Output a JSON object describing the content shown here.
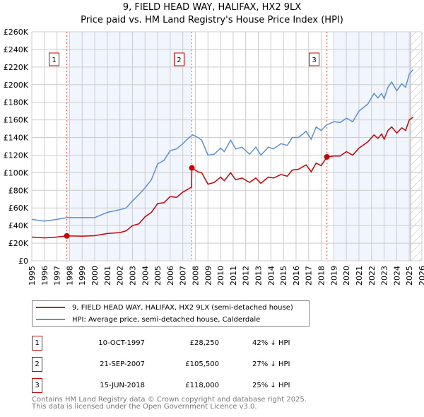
{
  "chart_data": {
    "type": "line",
    "title": "9, FIELD HEAD WAY, HALIFAX, HX2 9LX",
    "subtitle": "Price paid vs. HM Land Registry's House Price Index (HPI)",
    "xlim": [
      1995,
      2026
    ],
    "ylim": [
      0,
      260000
    ],
    "x_ticks": [
      "1995",
      "1996",
      "1997",
      "1998",
      "1999",
      "2000",
      "2001",
      "2002",
      "2003",
      "2004",
      "2005",
      "2006",
      "2007",
      "2008",
      "2009",
      "2010",
      "2011",
      "2012",
      "2013",
      "2014",
      "2015",
      "2016",
      "2017",
      "2018",
      "2019",
      "2020",
      "2021",
      "2022",
      "2023",
      "2024",
      "2025",
      "2026"
    ],
    "y_ticks": [
      {
        "v": 0,
        "label": "£0"
      },
      {
        "v": 20000,
        "label": "£20K"
      },
      {
        "v": 40000,
        "label": "£40K"
      },
      {
        "v": 60000,
        "label": "£60K"
      },
      {
        "v": 80000,
        "label": "£80K"
      },
      {
        "v": 100000,
        "label": "£100K"
      },
      {
        "v": 120000,
        "label": "£120K"
      },
      {
        "v": 140000,
        "label": "£140K"
      },
      {
        "v": 160000,
        "label": "£160K"
      },
      {
        "v": 180000,
        "label": "£180K"
      },
      {
        "v": 200000,
        "label": "£200K"
      },
      {
        "v": 220000,
        "label": "£220K"
      },
      {
        "v": 240000,
        "label": "£240K"
      },
      {
        "v": 260000,
        "label": "£260K"
      }
    ],
    "grid": true,
    "shaded_ranges": [
      [
        1998,
        2007.72
      ],
      [
        2019,
        2025.0
      ]
    ],
    "forecast_hatch_from": 2025.1,
    "series": [
      {
        "name": "9, FIELD HEAD WAY, HALIFAX, HX2 9LX (semi-detached house)",
        "color": "#cc0000",
        "x": [
          1995,
          1996,
          1997,
          1997.78,
          1999,
          2000,
          2001,
          2002,
          2002.5,
          2003,
          2003.5,
          2004,
          2004.5,
          2005,
          2005.5,
          2006,
          2006.5,
          2007,
          2007.5,
          2007.7,
          2007.72,
          2008.2,
          2008.5,
          2009,
          2009.5,
          2010,
          2010.3,
          2010.8,
          2011.2,
          2011.7,
          2012.3,
          2012.8,
          2013.2,
          2013.8,
          2014.2,
          2014.8,
          2015.3,
          2015.7,
          2016.2,
          2016.8,
          2017.2,
          2017.6,
          2018,
          2018.45,
          2019,
          2019.5,
          2020,
          2020.5,
          2021,
          2021.7,
          2022.2,
          2022.5,
          2022.8,
          2023,
          2023.3,
          2023.6,
          2024,
          2024.4,
          2024.7,
          2025,
          2025.3
        ],
        "y": [
          27000,
          26000,
          27000,
          28250,
          28000,
          28500,
          31000,
          32000,
          34000,
          40000,
          42000,
          50000,
          55000,
          65000,
          66000,
          73000,
          72000,
          78000,
          82000,
          84000,
          105500,
          101000,
          100000,
          87000,
          89000,
          95000,
          91000,
          100000,
          92000,
          94000,
          89000,
          94000,
          88000,
          95000,
          94000,
          98000,
          96000,
          103000,
          104000,
          109000,
          101000,
          111000,
          108000,
          118000,
          119000,
          119000,
          124000,
          120000,
          128000,
          135000,
          143000,
          139000,
          144000,
          138000,
          148000,
          152000,
          145000,
          151000,
          148000,
          160000,
          163000
        ]
      },
      {
        "name": "HPI: Average price, semi-detached house, Calderdale",
        "color": "#5b8fd6",
        "x": [
          1995,
          1996,
          1997,
          1997.8,
          1999,
          2000,
          2000.5,
          2001,
          2002,
          2002.5,
          2003,
          2003.5,
          2004,
          2004.5,
          2005,
          2005.5,
          2006,
          2006.5,
          2007,
          2007.5,
          2007.8,
          2008.2,
          2008.5,
          2009,
          2009.5,
          2010,
          2010.3,
          2010.8,
          2011.2,
          2011.7,
          2012.3,
          2012.8,
          2013.2,
          2013.8,
          2014.2,
          2014.8,
          2015.3,
          2015.7,
          2016.2,
          2016.8,
          2017.2,
          2017.6,
          2018,
          2018.4,
          2019,
          2019.5,
          2020,
          2020.5,
          2021,
          2021.7,
          2022.2,
          2022.5,
          2022.8,
          2023,
          2023.3,
          2023.6,
          2024,
          2024.4,
          2024.7,
          2025,
          2025.3
        ],
        "y": [
          47000,
          45000,
          47000,
          49000,
          49000,
          49000,
          52000,
          55000,
          58000,
          60000,
          68000,
          75000,
          83000,
          92000,
          110000,
          114000,
          125000,
          127000,
          133000,
          140000,
          143000,
          140000,
          137000,
          120000,
          121000,
          128000,
          124000,
          137000,
          127000,
          129000,
          121000,
          129000,
          120000,
          129000,
          127000,
          133000,
          131000,
          140000,
          140000,
          147000,
          138000,
          152000,
          148000,
          154000,
          158000,
          157000,
          162000,
          158000,
          170000,
          178000,
          190000,
          185000,
          190000,
          184000,
          197000,
          203000,
          193000,
          201000,
          197000,
          212000,
          217000
        ]
      }
    ],
    "sales": [
      {
        "num": "1",
        "x": 1997.78,
        "y": 28250,
        "date": "10-OCT-1997",
        "price": "£28,250",
        "hpi": "42% ↓ HPI"
      },
      {
        "num": "2",
        "x": 2007.72,
        "y": 105500,
        "date": "21-SEP-2007",
        "price": "£105,500",
        "hpi": "27% ↓ HPI"
      },
      {
        "num": "3",
        "x": 2018.45,
        "y": 118000,
        "date": "15-JUN-2018",
        "price": "£118,000",
        "hpi": "25% ↓ HPI"
      }
    ],
    "legend_placement": "below"
  },
  "footer": {
    "line1": "Contains HM Land Registry data © Crown copyright and database right 2025.",
    "line2": "This data is licensed under the Open Government Licence v3.0."
  }
}
